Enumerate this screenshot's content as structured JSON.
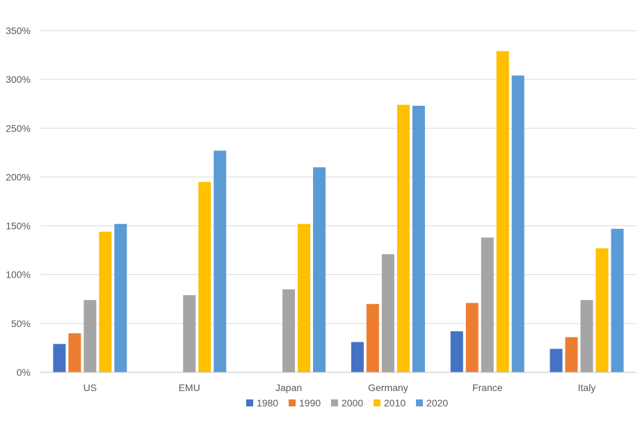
{
  "chart_data": {
    "type": "bar",
    "title": "",
    "xlabel": "",
    "ylabel": "",
    "categories": [
      "US",
      "EMU",
      "Japan",
      "Germany",
      "France",
      "Italy"
    ],
    "ylim": [
      0,
      350
    ],
    "yticks": [
      0,
      50,
      100,
      150,
      200,
      250,
      300,
      350
    ],
    "ytick_labels": [
      "0%",
      "50%",
      "100%",
      "150%",
      "200%",
      "250%",
      "300%",
      "350%"
    ],
    "y_unit": "%",
    "grid": true,
    "legend_position": "bottom",
    "series": [
      {
        "name": "1980",
        "color": "#4472C4",
        "values": [
          29,
          null,
          null,
          31,
          42,
          24
        ]
      },
      {
        "name": "1990",
        "color": "#ED7D31",
        "values": [
          40,
          null,
          null,
          70,
          71,
          36
        ]
      },
      {
        "name": "2000",
        "color": "#A5A5A5",
        "values": [
          74,
          79,
          85,
          121,
          138,
          74
        ]
      },
      {
        "name": "2010",
        "color": "#FFC000",
        "values": [
          144,
          195,
          152,
          274,
          329,
          127
        ]
      },
      {
        "name": "2020",
        "color": "#5B9BD5",
        "values": [
          152,
          227,
          210,
          273,
          304,
          147
        ]
      }
    ]
  }
}
